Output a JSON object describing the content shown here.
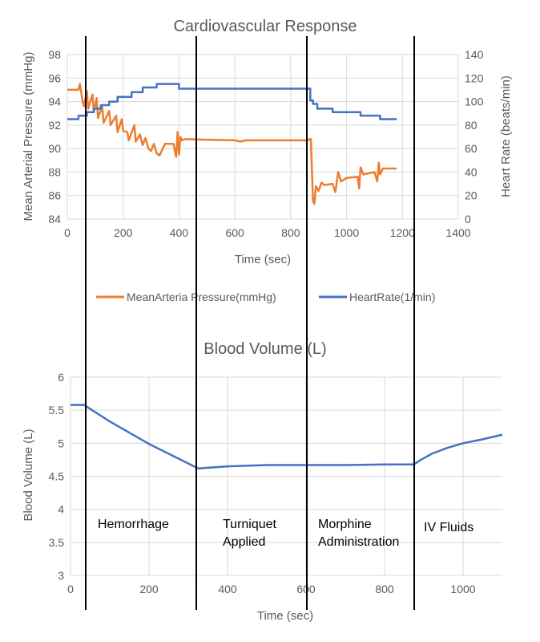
{
  "chart_data": [
    {
      "type": "line",
      "title": "Cardiovascular Response",
      "xlabel": "Time (sec)",
      "ylabel": "Mean Arterial Pressure (mmHg)",
      "y2label": "Heart Rate (beats/min)",
      "xlim": [
        0,
        1400
      ],
      "ylim": [
        84,
        98
      ],
      "y2lim": [
        0,
        140
      ],
      "xticks": [
        0,
        200,
        400,
        600,
        800,
        1000,
        1200,
        1400
      ],
      "yticks": [
        84,
        86,
        88,
        90,
        92,
        94,
        96,
        98
      ],
      "y2ticks": [
        0,
        20,
        40,
        60,
        80,
        100,
        120,
        140
      ],
      "grid": true,
      "legend": "bottom",
      "series": [
        {
          "name": "MeanArteria Pressure(mmHg)",
          "axis": "left",
          "color": "#ed7d31",
          "x": [
            0,
            40,
            45,
            55,
            60,
            70,
            75,
            90,
            95,
            105,
            110,
            125,
            130,
            150,
            155,
            175,
            180,
            195,
            200,
            215,
            220,
            240,
            245,
            260,
            270,
            280,
            290,
            300,
            310,
            320,
            330,
            340,
            350,
            360,
            380,
            390,
            395,
            400,
            405,
            410,
            420,
            600,
            620,
            640,
            860,
            868,
            872,
            880,
            885,
            890,
            900,
            910,
            920,
            950,
            960,
            970,
            980,
            1000,
            1040,
            1045,
            1050,
            1060,
            1100,
            1110,
            1115,
            1120,
            1130,
            1180
          ],
          "y": [
            95,
            95,
            95.5,
            94,
            93.6,
            94.9,
            93.4,
            94.6,
            93.1,
            94.3,
            92.6,
            93.6,
            92.2,
            93.2,
            92.0,
            92.8,
            91.4,
            92.5,
            91.5,
            91.4,
            90.7,
            92.0,
            90.6,
            91.2,
            90.3,
            90.9,
            90.0,
            89.8,
            90.4,
            89.6,
            89.4,
            89.9,
            90.4,
            90.4,
            90.4,
            89.3,
            91.4,
            89.5,
            91.0,
            90.7,
            90.8,
            90.7,
            90.6,
            90.7,
            90.7,
            90.8,
            90.8,
            85.5,
            85.3,
            86.8,
            86.4,
            87.1,
            86.9,
            87.0,
            86.3,
            88.0,
            87.2,
            87.5,
            87.6,
            86.6,
            88.4,
            87.8,
            88.0,
            87.2,
            88.8,
            87.8,
            88.3,
            88.3
          ]
        },
        {
          "name": "HeartRate(1/min)",
          "axis": "right",
          "color": "#4472c4",
          "x": [
            0,
            40,
            40,
            70,
            70,
            95,
            95,
            120,
            120,
            150,
            150,
            180,
            180,
            230,
            230,
            270,
            270,
            320,
            320,
            400,
            400,
            870,
            870,
            880,
            880,
            895,
            895,
            950,
            950,
            1050,
            1050,
            1120,
            1120,
            1180
          ],
          "y": [
            85,
            85,
            88,
            88,
            91,
            91,
            94,
            94,
            97,
            97,
            100,
            100,
            104,
            104,
            108,
            108,
            112,
            112,
            115,
            115,
            111,
            111,
            101,
            101,
            98,
            98,
            94,
            94,
            91,
            91,
            88,
            88,
            85,
            85
          ]
        }
      ]
    },
    {
      "type": "line",
      "title": "Blood Volume (L)",
      "xlabel": "Time (sec)",
      "ylabel": "Blood Volume (L)",
      "xlim": [
        0,
        1100
      ],
      "ylim": [
        3,
        6
      ],
      "xticks": [
        0,
        200,
        400,
        600,
        800,
        1000
      ],
      "yticks": [
        3,
        3.5,
        4,
        4.5,
        5,
        5.5,
        6
      ],
      "ytick_labels": [
        "3",
        "3.5",
        "4",
        "4.5",
        "5",
        "5.5",
        "6"
      ],
      "grid": true,
      "series": [
        {
          "color": "#4472c4",
          "x": [
            0,
            35,
            45,
            100,
            200,
            325,
            330,
            400,
            500,
            600,
            700,
            800,
            875,
            890,
            920,
            960,
            1000,
            1050,
            1100
          ],
          "y": [
            5.58,
            5.58,
            5.54,
            5.33,
            4.99,
            4.62,
            4.62,
            4.65,
            4.67,
            4.67,
            4.67,
            4.68,
            4.68,
            4.74,
            4.84,
            4.93,
            5.0,
            5.06,
            5.13
          ]
        }
      ]
    }
  ],
  "annotations": {
    "phases": [
      "Hemorrhage",
      "Turniquet",
      "Applied",
      "Morphine",
      "Administration",
      "IV Fluids"
    ]
  }
}
